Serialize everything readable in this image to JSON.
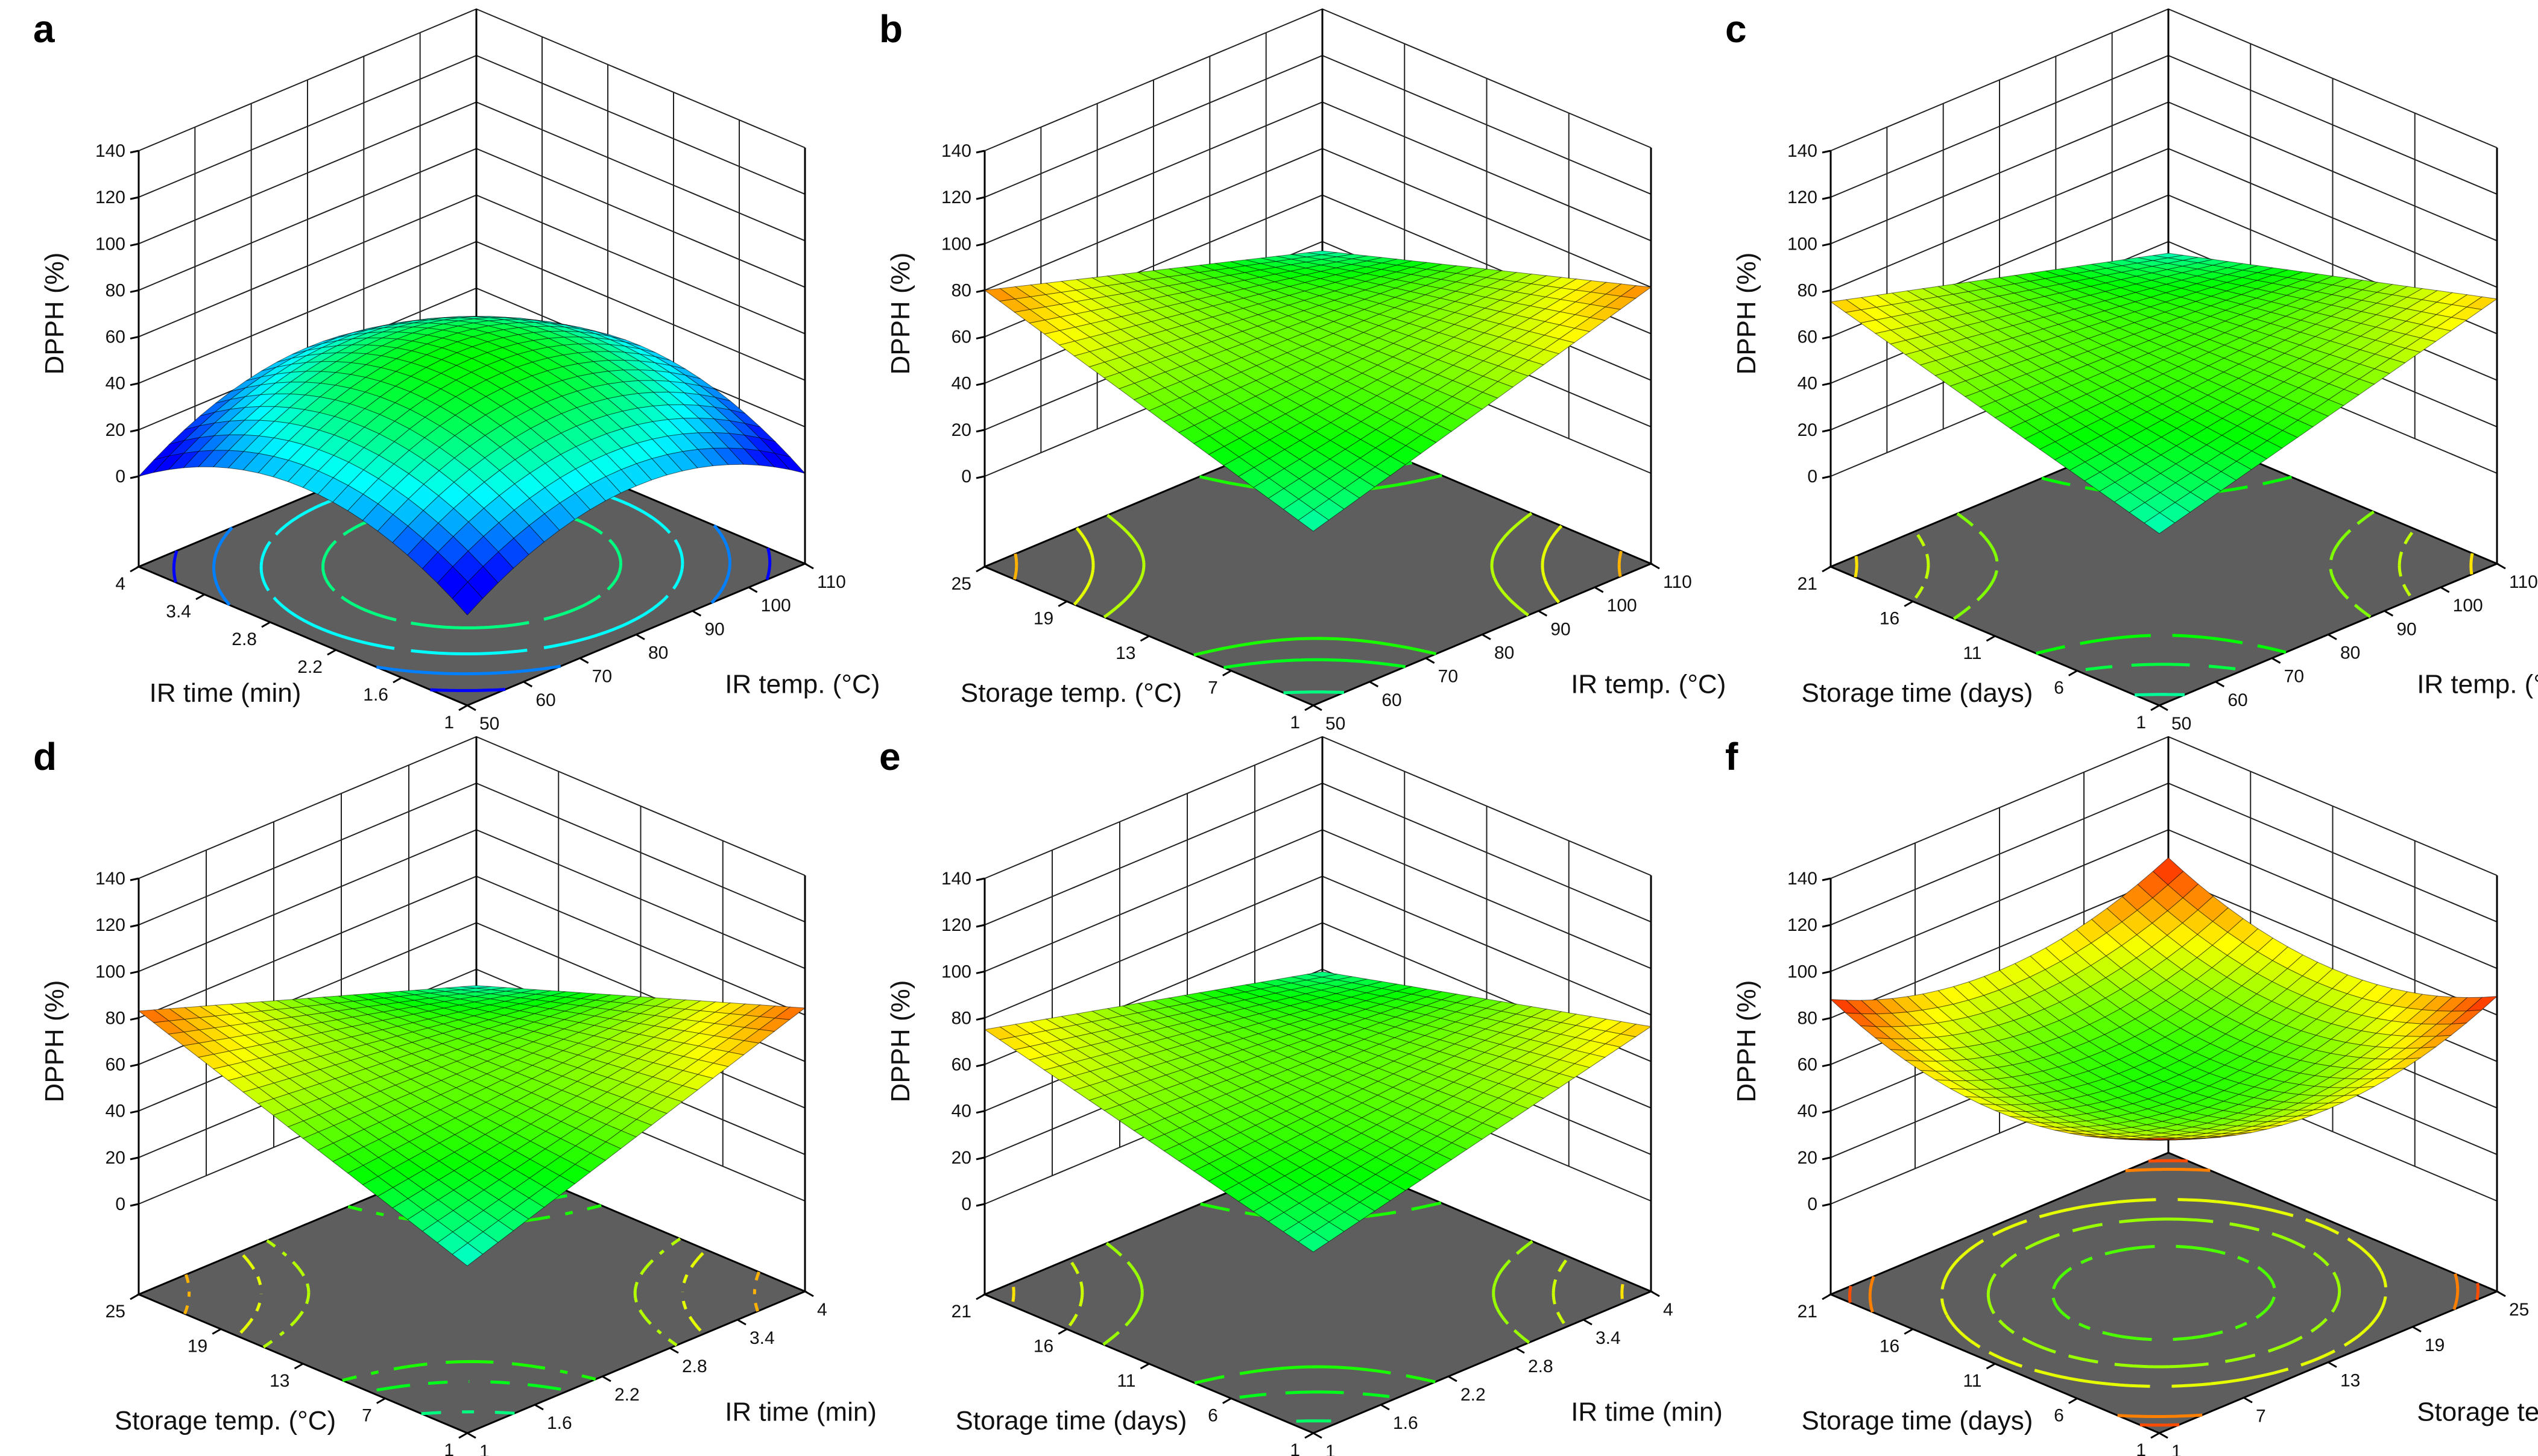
{
  "chart_data": [
    {
      "panel": "a",
      "type": "surface3d",
      "zlabel": "DPPH (%)",
      "zticks": [
        "0",
        "20",
        "40",
        "60",
        "80",
        "100",
        "120",
        "140"
      ],
      "zlim": [
        0,
        140
      ],
      "xlabel": "IR temp. (°C)",
      "xticks": [
        "50",
        "60",
        "70",
        "80",
        "90",
        "100",
        "110"
      ],
      "xlim": [
        50,
        110
      ],
      "ylabel": "IR time (min)",
      "yticks": [
        "1",
        "1.6",
        "2.2",
        "2.8",
        "3.4",
        "4"
      ],
      "ylim": [
        1,
        4
      ],
      "surface": {
        "center": 50,
        "dx": 0,
        "dy": 0,
        "qx": -25,
        "qy": -25,
        "cross": 0
      },
      "contour_levels": [
        10,
        20,
        30,
        40
      ]
    },
    {
      "panel": "b",
      "type": "surface3d",
      "zlabel": "DPPH (%)",
      "zticks": [
        "0",
        "20",
        "40",
        "60",
        "80",
        "100",
        "120",
        "140"
      ],
      "zlim": [
        0,
        140
      ],
      "xlabel": "IR temp. (°C)",
      "xticks": [
        "50",
        "60",
        "70",
        "80",
        "90",
        "100",
        "110"
      ],
      "xlim": [
        50,
        110
      ],
      "ylabel": "Storage temp. (°C)",
      "yticks": [
        "1",
        "7",
        "13",
        "19",
        "25"
      ],
      "ylim": [
        1,
        25
      ],
      "surface": {
        "center": 58,
        "dx": 0,
        "dy": 0,
        "qx": 0,
        "qy": 0,
        "cross": -22
      },
      "contour_levels": [
        40,
        48,
        52,
        64,
        68,
        76
      ]
    },
    {
      "panel": "c",
      "type": "surface3d",
      "zlabel": "DPPH (%)",
      "zticks": [
        "0",
        "20",
        "40",
        "60",
        "80",
        "100",
        "120",
        "140"
      ],
      "zlim": [
        0,
        140
      ],
      "xlabel": "IR temp. (°C)",
      "xticks": [
        "50",
        "60",
        "70",
        "80",
        "90",
        "100",
        "110"
      ],
      "xlim": [
        50,
        110
      ],
      "ylabel": "Storage time (days)",
      "yticks": [
        "1",
        "6",
        "11",
        "16",
        "21"
      ],
      "ylim": [
        1,
        21
      ],
      "surface": {
        "center": 55,
        "dx": 0,
        "dy": 0,
        "qx": 0,
        "qy": 0,
        "cross": -20
      },
      "contour_levels": [
        38,
        45,
        50,
        60,
        65,
        72
      ]
    },
    {
      "panel": "d",
      "type": "surface3d",
      "zlabel": "DPPH (%)",
      "zticks": [
        "0",
        "20",
        "40",
        "60",
        "80",
        "100",
        "120",
        "140"
      ],
      "zlim": [
        0,
        140
      ],
      "xlabel": "IR time (min)",
      "xticks": [
        "1",
        "1.6",
        "2.2",
        "2.8",
        "3.4",
        "4"
      ],
      "xlim": [
        1,
        4
      ],
      "ylabel": "Storage temp. (°C)",
      "yticks": [
        "1",
        "7",
        "13",
        "19",
        "25"
      ],
      "ylim": [
        1,
        25
      ],
      "surface": {
        "center": 58,
        "dx": 0,
        "dy": 0,
        "qx": 0,
        "qy": 0,
        "cross": -25
      },
      "contour_levels": [
        40,
        48,
        52,
        64,
        68,
        76
      ]
    },
    {
      "panel": "e",
      "type": "surface3d",
      "zlabel": "DPPH (%)",
      "zticks": [
        "0",
        "20",
        "40",
        "60",
        "80",
        "100",
        "120",
        "140"
      ],
      "zlim": [
        0,
        140
      ],
      "xlabel": "IR time (min)",
      "xticks": [
        "1",
        "1.6",
        "2.2",
        "2.8",
        "3.4",
        "4"
      ],
      "xlim": [
        1,
        4
      ],
      "ylabel": "Storage time (days)",
      "yticks": [
        "1",
        "6",
        "11",
        "16",
        "21"
      ],
      "ylim": [
        1,
        21
      ],
      "surface": {
        "center": 57,
        "dx": 0,
        "dy": 0,
        "qx": 0,
        "qy": 0,
        "cross": -18
      },
      "contour_levels": [
        42,
        48,
        52,
        62,
        66,
        72
      ]
    },
    {
      "panel": "f",
      "type": "surface3d",
      "zlabel": "DPPH (%)",
      "zticks": [
        "0",
        "20",
        "40",
        "60",
        "80",
        "100",
        "120",
        "140"
      ],
      "zlim": [
        0,
        140
      ],
      "xlabel": "Storage temp. (°C)",
      "xticks": [
        "1",
        "7",
        "13",
        "19",
        "25"
      ],
      "xlim": [
        1,
        25
      ],
      "ylabel": "Storage time (days)",
      "yticks": [
        "1",
        "6",
        "11",
        "16",
        "21"
      ],
      "ylim": [
        1,
        21
      ],
      "surface": {
        "center": 52,
        "dx": 0,
        "dy": 0,
        "qx": 18,
        "qy": 18,
        "cross": 0
      },
      "contour_levels": [
        56,
        62,
        68,
        80,
        84
      ]
    }
  ],
  "colors": {
    "contour_floor": "#5e5e5e",
    "colormap": [
      "#0000ff",
      "#00ffff",
      "#00ff00",
      "#ffff00",
      "#ff0000"
    ],
    "colormap_range": [
      10,
      90
    ]
  }
}
